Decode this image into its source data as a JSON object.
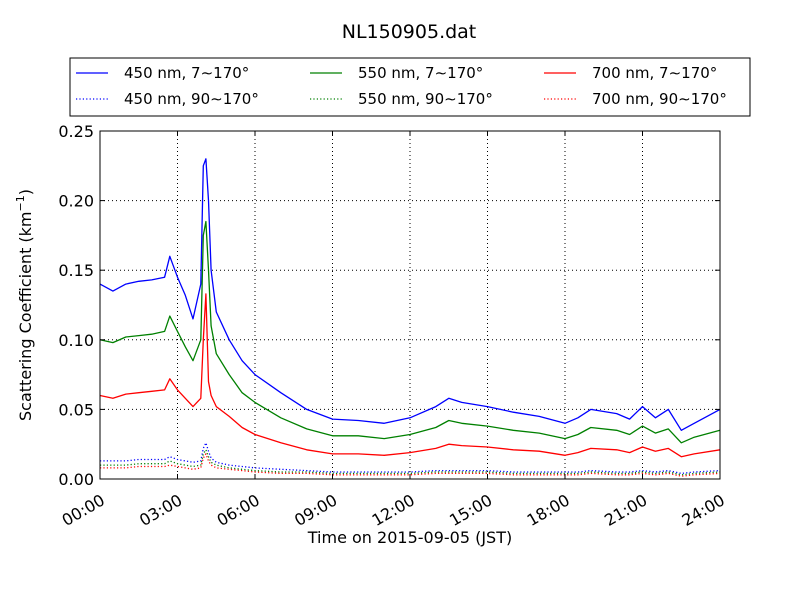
{
  "chart_data": {
    "type": "line",
    "title": "NL150905.dat",
    "xlabel": "Time on 2015-09-05 (JST)",
    "ylabel": "Scattering Coefficient (km",
    "ylabel_sup": "−1",
    "ylabel_end": ")",
    "xlim": [
      0,
      24
    ],
    "ylim": [
      0,
      0.25
    ],
    "grid": true,
    "legend_position": "top",
    "x_ticks": [
      0,
      3,
      6,
      9,
      12,
      15,
      18,
      21,
      24
    ],
    "x_tick_labels": [
      "00:00",
      "03:00",
      "06:00",
      "09:00",
      "12:00",
      "15:00",
      "18:00",
      "21:00",
      "24:00"
    ],
    "y_ticks": [
      0,
      0.05,
      0.1,
      0.15,
      0.2,
      0.25
    ],
    "y_tick_labels": [
      "0.00",
      "0.05",
      "0.10",
      "0.15",
      "0.20",
      "0.25"
    ],
    "x": [
      0,
      0.5,
      1,
      1.5,
      2,
      2.5,
      2.7,
      3,
      3.3,
      3.6,
      3.9,
      4.0,
      4.1,
      4.2,
      4.3,
      4.5,
      5,
      5.5,
      6,
      7,
      8,
      9,
      10,
      11,
      12,
      13,
      13.5,
      14,
      15,
      16,
      17,
      18,
      18.5,
      19,
      20,
      20.5,
      21,
      21.5,
      22,
      22.5,
      23,
      24
    ],
    "series": [
      {
        "name": "450 nm, 7∼170°",
        "color": "#0000ff",
        "dash": "solid",
        "values": [
          0.14,
          0.135,
          0.14,
          0.142,
          0.143,
          0.145,
          0.16,
          0.145,
          0.132,
          0.115,
          0.14,
          0.225,
          0.23,
          0.2,
          0.15,
          0.12,
          0.1,
          0.085,
          0.075,
          0.062,
          0.05,
          0.043,
          0.042,
          0.04,
          0.044,
          0.052,
          0.058,
          0.055,
          0.052,
          0.048,
          0.045,
          0.04,
          0.044,
          0.05,
          0.047,
          0.043,
          0.052,
          0.044,
          0.05,
          0.035,
          0.04,
          0.05
        ]
      },
      {
        "name": "550 nm, 7∼170°",
        "color": "#008000",
        "dash": "solid",
        "values": [
          0.1,
          0.098,
          0.102,
          0.103,
          0.104,
          0.106,
          0.117,
          0.106,
          0.095,
          0.085,
          0.1,
          0.175,
          0.185,
          0.15,
          0.11,
          0.09,
          0.075,
          0.062,
          0.055,
          0.044,
          0.036,
          0.031,
          0.031,
          0.029,
          0.032,
          0.037,
          0.042,
          0.04,
          0.038,
          0.035,
          0.033,
          0.029,
          0.032,
          0.037,
          0.035,
          0.032,
          0.038,
          0.033,
          0.036,
          0.026,
          0.03,
          0.035
        ]
      },
      {
        "name": "700 nm, 7∼170°",
        "color": "#ff0000",
        "dash": "solid",
        "values": [
          0.06,
          0.058,
          0.061,
          0.062,
          0.063,
          0.064,
          0.072,
          0.064,
          0.058,
          0.052,
          0.058,
          0.1,
          0.133,
          0.07,
          0.06,
          0.052,
          0.045,
          0.037,
          0.032,
          0.026,
          0.021,
          0.018,
          0.018,
          0.017,
          0.019,
          0.022,
          0.025,
          0.024,
          0.023,
          0.021,
          0.02,
          0.017,
          0.019,
          0.022,
          0.021,
          0.019,
          0.023,
          0.02,
          0.022,
          0.016,
          0.018,
          0.021
        ]
      },
      {
        "name": "450 nm, 90∼170°",
        "color": "#0000ff",
        "dash": "dotted",
        "values": [
          0.013,
          0.013,
          0.013,
          0.014,
          0.014,
          0.014,
          0.016,
          0.014,
          0.013,
          0.012,
          0.013,
          0.022,
          0.026,
          0.02,
          0.015,
          0.012,
          0.01,
          0.009,
          0.008,
          0.007,
          0.006,
          0.005,
          0.005,
          0.005,
          0.005,
          0.006,
          0.006,
          0.006,
          0.006,
          0.005,
          0.005,
          0.005,
          0.005,
          0.006,
          0.005,
          0.005,
          0.006,
          0.005,
          0.006,
          0.004,
          0.005,
          0.006
        ]
      },
      {
        "name": "550 nm, 90∼170°",
        "color": "#008000",
        "dash": "dotted",
        "values": [
          0.01,
          0.01,
          0.01,
          0.011,
          0.011,
          0.011,
          0.013,
          0.011,
          0.01,
          0.009,
          0.01,
          0.018,
          0.021,
          0.016,
          0.012,
          0.01,
          0.008,
          0.007,
          0.006,
          0.005,
          0.005,
          0.004,
          0.004,
          0.004,
          0.004,
          0.005,
          0.005,
          0.005,
          0.005,
          0.004,
          0.004,
          0.004,
          0.004,
          0.005,
          0.004,
          0.004,
          0.005,
          0.004,
          0.005,
          0.003,
          0.004,
          0.005
        ]
      },
      {
        "name": "700 nm, 90∼170°",
        "color": "#ff0000",
        "dash": "dotted",
        "values": [
          0.008,
          0.008,
          0.008,
          0.009,
          0.009,
          0.009,
          0.01,
          0.009,
          0.008,
          0.007,
          0.008,
          0.015,
          0.018,
          0.013,
          0.01,
          0.008,
          0.007,
          0.006,
          0.005,
          0.004,
          0.004,
          0.003,
          0.003,
          0.003,
          0.003,
          0.004,
          0.004,
          0.004,
          0.004,
          0.003,
          0.003,
          0.003,
          0.003,
          0.004,
          0.003,
          0.003,
          0.004,
          0.003,
          0.004,
          0.002,
          0.003,
          0.004
        ]
      }
    ],
    "legend_order": [
      0,
      1,
      2,
      3,
      4,
      5
    ]
  }
}
